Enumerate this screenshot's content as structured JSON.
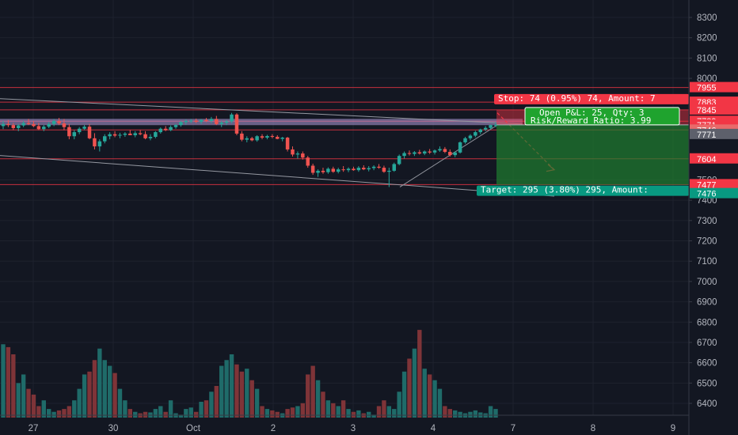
{
  "chart_data": {
    "type": "candlestick",
    "symbol_hint": "",
    "price_axis": {
      "ticks": [
        8300,
        8200,
        8100,
        8000,
        7500,
        7400,
        7300,
        7200,
        7100,
        7000,
        6900,
        6800,
        6700,
        6600,
        6500,
        6400
      ],
      "range": [
        6345,
        8385
      ]
    },
    "time_axis": {
      "labels": [
        "27",
        "30",
        "Oct",
        "2",
        "3",
        "4",
        "7",
        "8",
        "9"
      ],
      "range_days": [
        0,
        12.9
      ],
      "label_days": [
        0.5,
        1.5,
        2.5,
        3.5,
        4.5,
        5.5,
        6.5,
        7.5,
        8.5
      ]
    },
    "price_tags": [
      {
        "value": 7955,
        "label": "7955",
        "color": "#f23645"
      },
      {
        "value": 7883,
        "label": "7883",
        "color": "#f23645"
      },
      {
        "value": 7845,
        "label": "7845",
        "color": "#f23645"
      },
      {
        "value": 7789,
        "label": "7789",
        "color": "#f23645"
      },
      {
        "value": 7771,
        "label": "7771",
        "color": "#f23645"
      },
      {
        "value": 7746,
        "label": "7746",
        "color": "#e86a6a"
      },
      {
        "value": 7604,
        "label": "7604",
        "color": "#f23645"
      },
      {
        "value": 7477,
        "label": "7477",
        "color": "#f23645"
      },
      {
        "value": 7476,
        "label": "7476",
        "color": "#089981"
      },
      {
        "value": 7771,
        "label": "7771",
        "color": "#5d606b",
        "is_current": true
      }
    ],
    "horizontal_levels": [
      7955,
      7883,
      7845,
      7789,
      7746,
      7604,
      7477
    ],
    "position": {
      "type": "short",
      "entry": 7771,
      "stop": 7845,
      "target": 7476,
      "stop_label": "Stop: 74 (0.95%) 74, Amount: 7",
      "target_label": "Target: 295 (3.80%) 295, Amount:",
      "pnl_line1": "Open P&L: 25, Qty: 3",
      "pnl_line2": "Risk/Reward Ratio: 3.99"
    },
    "candles": [
      [
        7765,
        7790,
        7750,
        7775
      ],
      [
        7775,
        7795,
        7760,
        7770
      ],
      [
        7770,
        7780,
        7745,
        7755
      ],
      [
        7755,
        7775,
        7740,
        7768
      ],
      [
        7768,
        7790,
        7760,
        7780
      ],
      [
        7780,
        7800,
        7770,
        7775
      ],
      [
        7775,
        7790,
        7760,
        7765
      ],
      [
        7765,
        7780,
        7745,
        7750
      ],
      [
        7750,
        7770,
        7740,
        7762
      ],
      [
        7762,
        7785,
        7755,
        7775
      ],
      [
        7775,
        7800,
        7765,
        7790
      ],
      [
        7790,
        7805,
        7770,
        7778
      ],
      [
        7778,
        7800,
        7745,
        7760
      ],
      [
        7760,
        7775,
        7700,
        7715
      ],
      [
        7715,
        7745,
        7700,
        7735
      ],
      [
        7735,
        7760,
        7725,
        7752
      ],
      [
        7752,
        7770,
        7745,
        7762
      ],
      [
        7762,
        7775,
        7700,
        7705
      ],
      [
        7705,
        7730,
        7650,
        7665
      ],
      [
        7665,
        7700,
        7640,
        7690
      ],
      [
        7690,
        7725,
        7680,
        7715
      ],
      [
        7715,
        7735,
        7700,
        7725
      ],
      [
        7725,
        7740,
        7710,
        7718
      ],
      [
        7718,
        7732,
        7705,
        7722
      ],
      [
        7722,
        7735,
        7712,
        7728
      ],
      [
        7728,
        7745,
        7720,
        7720
      ],
      [
        7720,
        7740,
        7710,
        7730
      ],
      [
        7730,
        7745,
        7720,
        7725
      ],
      [
        7725,
        7740,
        7700,
        7705
      ],
      [
        7705,
        7725,
        7695,
        7712
      ],
      [
        7712,
        7740,
        7705,
        7735
      ],
      [
        7735,
        7758,
        7728,
        7752
      ],
      [
        7752,
        7765,
        7740,
        7745
      ],
      [
        7745,
        7768,
        7740,
        7760
      ],
      [
        7760,
        7775,
        7752,
        7770
      ],
      [
        7770,
        7790,
        7762,
        7785
      ],
      [
        7785,
        7798,
        7772,
        7790
      ],
      [
        7790,
        7800,
        7780,
        7792
      ],
      [
        7792,
        7802,
        7780,
        7786
      ],
      [
        7786,
        7800,
        7775,
        7795
      ],
      [
        7795,
        7805,
        7785,
        7790
      ],
      [
        7790,
        7810,
        7780,
        7800
      ],
      [
        7800,
        7815,
        7770,
        7775
      ],
      [
        7775,
        7790,
        7760,
        7782
      ],
      [
        7782,
        7795,
        7770,
        7788
      ],
      [
        7788,
        7830,
        7780,
        7822
      ],
      [
        7822,
        7828,
        7720,
        7728
      ],
      [
        7728,
        7740,
        7690,
        7698
      ],
      [
        7698,
        7715,
        7685,
        7705
      ],
      [
        7705,
        7712,
        7690,
        7695
      ],
      [
        7695,
        7720,
        7688,
        7715
      ],
      [
        7715,
        7725,
        7700,
        7708
      ],
      [
        7708,
        7722,
        7700,
        7716
      ],
      [
        7716,
        7725,
        7705,
        7712
      ],
      [
        7712,
        7720,
        7700,
        7702
      ],
      [
        7702,
        7712,
        7690,
        7708
      ],
      [
        7708,
        7712,
        7640,
        7650
      ],
      [
        7650,
        7665,
        7615,
        7625
      ],
      [
        7625,
        7640,
        7605,
        7630
      ],
      [
        7630,
        7640,
        7600,
        7610
      ],
      [
        7610,
        7618,
        7560,
        7570
      ],
      [
        7570,
        7580,
        7525,
        7535
      ],
      [
        7535,
        7552,
        7515,
        7545
      ],
      [
        7545,
        7560,
        7530,
        7538
      ],
      [
        7538,
        7562,
        7530,
        7555
      ],
      [
        7555,
        7565,
        7535,
        7540
      ],
      [
        7540,
        7560,
        7532,
        7552
      ],
      [
        7552,
        7568,
        7540,
        7548
      ],
      [
        7548,
        7562,
        7538,
        7555
      ],
      [
        7555,
        7565,
        7545,
        7548
      ],
      [
        7548,
        7568,
        7540,
        7560
      ],
      [
        7560,
        7572,
        7548,
        7552
      ],
      [
        7552,
        7568,
        7542,
        7558
      ],
      [
        7558,
        7572,
        7548,
        7565
      ],
      [
        7565,
        7578,
        7555,
        7560
      ],
      [
        7560,
        7570,
        7535,
        7540
      ],
      [
        7540,
        7560,
        7465,
        7545
      ],
      [
        7545,
        7585,
        7540,
        7578
      ],
      [
        7578,
        7625,
        7572,
        7618
      ],
      [
        7618,
        7640,
        7605,
        7632
      ],
      [
        7632,
        7645,
        7620,
        7628
      ],
      [
        7628,
        7642,
        7618,
        7636
      ],
      [
        7636,
        7648,
        7625,
        7630
      ],
      [
        7630,
        7645,
        7622,
        7640
      ],
      [
        7640,
        7652,
        7628,
        7635
      ],
      [
        7635,
        7650,
        7625,
        7645
      ],
      [
        7645,
        7665,
        7638,
        7652
      ],
      [
        7652,
        7662,
        7632,
        7638
      ],
      [
        7638,
        7650,
        7615,
        7622
      ],
      [
        7622,
        7640,
        7612,
        7635
      ],
      [
        7635,
        7690,
        7630,
        7685
      ],
      [
        7685,
        7712,
        7678,
        7705
      ],
      [
        7705,
        7725,
        7695,
        7718
      ],
      [
        7718,
        7742,
        7710,
        7735
      ],
      [
        7735,
        7752,
        7725,
        7748
      ],
      [
        7748,
        7765,
        7740,
        7756
      ],
      [
        7756,
        7772,
        7748,
        7770
      ],
      [
        7770,
        7782,
        7760,
        7771
      ]
    ],
    "volume": [
      255,
      245,
      220,
      120,
      150,
      100,
      80,
      40,
      60,
      30,
      20,
      25,
      30,
      40,
      60,
      100,
      150,
      160,
      200,
      240,
      200,
      180,
      155,
      100,
      60,
      30,
      20,
      15,
      20,
      18,
      30,
      40,
      20,
      60,
      15,
      10,
      30,
      35,
      20,
      55,
      60,
      90,
      110,
      180,
      200,
      220,
      185,
      160,
      170,
      130,
      100,
      40,
      30,
      25,
      20,
      15,
      30,
      35,
      40,
      50,
      150,
      180,
      130,
      90,
      60,
      50,
      40,
      60,
      30,
      20,
      25,
      15,
      20,
      10,
      40,
      60,
      40,
      30,
      90,
      160,
      205,
      240,
      305,
      170,
      150,
      130,
      100,
      40,
      30,
      25,
      20,
      15,
      20,
      25,
      18,
      15,
      40,
      30
    ],
    "volume_scale_max": 330,
    "colors": {
      "up": "#26a69a",
      "down": "#ef5350",
      "vol_up": "#1f6b69",
      "vol_down": "#7f3438",
      "stop_zone": "#f2364580",
      "target_zone": "#1f7f2f",
      "channel": "#9598a1",
      "resistance_band": "#b39ddb"
    }
  }
}
